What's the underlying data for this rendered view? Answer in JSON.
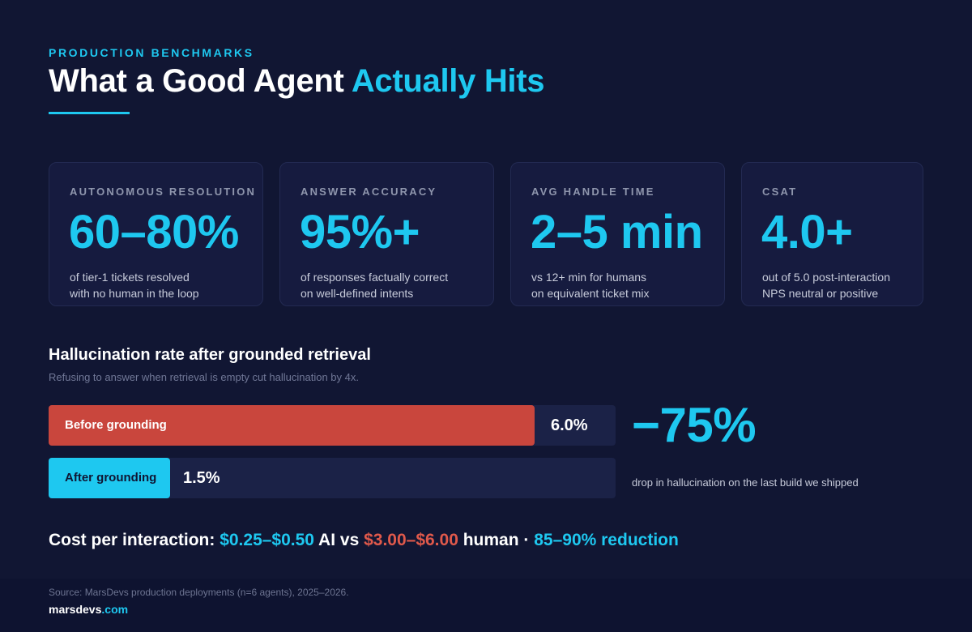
{
  "header": {
    "eyebrow": "PRODUCTION BENCHMARKS",
    "title_main": "What a Good Agent ",
    "title_accent": "Actually Hits"
  },
  "metrics": [
    {
      "label": "AUTONOMOUS RESOLUTION",
      "value": "60–80%",
      "desc_line1": "of tier-1 tickets resolved",
      "desc_line2": "with no human in the loop"
    },
    {
      "label": "ANSWER ACCURACY",
      "value": "95%+",
      "desc_line1": "of responses factually correct",
      "desc_line2": "on well-defined intents"
    },
    {
      "label": "AVG HANDLE TIME",
      "value": "2–5 min",
      "desc_line1": "vs 12+ min for humans",
      "desc_line2": "on equivalent ticket mix"
    },
    {
      "label": "CSAT",
      "value": "4.0+",
      "desc_line1": "out of 5.0 post-interaction",
      "desc_line2": "NPS neutral or positive"
    }
  ],
  "hallucination": {
    "title": "Hallucination rate after grounded retrieval",
    "subtitle": "Refusing to answer when retrieval is empty cut hallucination by 4x.",
    "before": {
      "label": "Before grounding",
      "value_text": "6.0%",
      "value": 6.0,
      "color": "#c9463d"
    },
    "after": {
      "label": "After grounding",
      "value_text": "1.5%",
      "value": 1.5,
      "color": "#1ec8f0"
    },
    "axis_max": 7.0,
    "drop_value": "−75%",
    "drop_caption": "drop in hallucination on the last build we shipped"
  },
  "cost": {
    "prefix": "Cost per interaction: ",
    "ai_range": "$0.25–$0.50",
    "ai_label": " AI vs ",
    "human_range": "$3.00–$6.00",
    "human_label": " human · ",
    "reduction": "85–90% reduction"
  },
  "footer": {
    "source": "Source: MarsDevs production deployments (n=6 agents), 2025–2026.",
    "brand_main": "marsdevs",
    "brand_tld": ".com"
  },
  "colors": {
    "background": "#111633",
    "accent": "#1ec8f0",
    "danger": "#c9463d"
  }
}
